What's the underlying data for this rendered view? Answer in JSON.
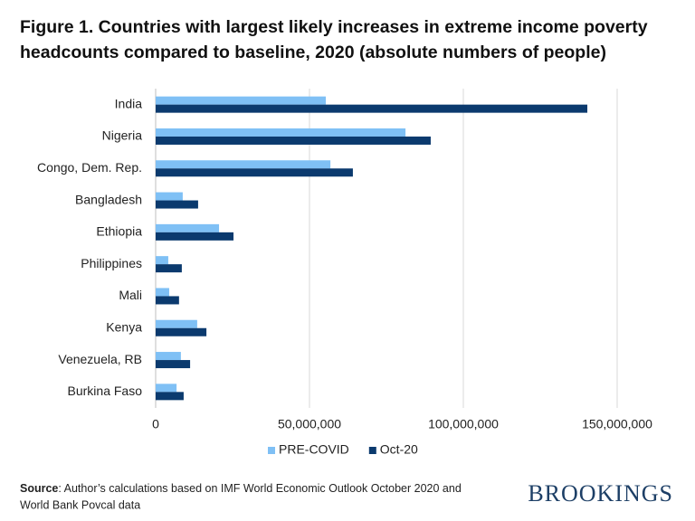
{
  "chart_data": {
    "type": "hbar",
    "title": [
      "Figure 1. Countries with largest likely increases in extreme income poverty",
      "headcounts compared to baseline, 2020 (absolute numbers of people)"
    ],
    "categories": [
      "India",
      "Nigeria",
      "Congo, Dem. Rep.",
      "Bangladesh",
      "Ethiopia",
      "Philippines",
      "Mali",
      "Kenya",
      "Venezuela, RB",
      "Burkina Faso"
    ],
    "series": [
      {
        "name": "PRE-COVID",
        "color": "#7fc0f5",
        "values": [
          55300000,
          81200000,
          56800000,
          8800000,
          20600000,
          4100000,
          4400000,
          13500000,
          8200000,
          6800000
        ]
      },
      {
        "name": "Oct-20",
        "color": "#0b3a6e",
        "values": [
          140300000,
          89400000,
          64100000,
          13800000,
          25300000,
          8500000,
          7600000,
          16500000,
          11200000,
          9100000
        ]
      }
    ],
    "xlim": [
      0,
      150000000
    ],
    "xticks": [
      0,
      {
        "value": 50000000,
        "label": "50,000,000"
      },
      {
        "value": 100000000,
        "label": "100,000,000"
      },
      {
        "value": 150000000,
        "label": "150,000,000"
      }
    ],
    "grid": true,
    "legend": "bottom",
    "source": {
      "label": "Source",
      "text": [
        ": Author’s calculations based on IMF World Economic Outlook October 2020 and",
        "World Bank Povcal data"
      ]
    },
    "logo": "BROOKINGS"
  }
}
